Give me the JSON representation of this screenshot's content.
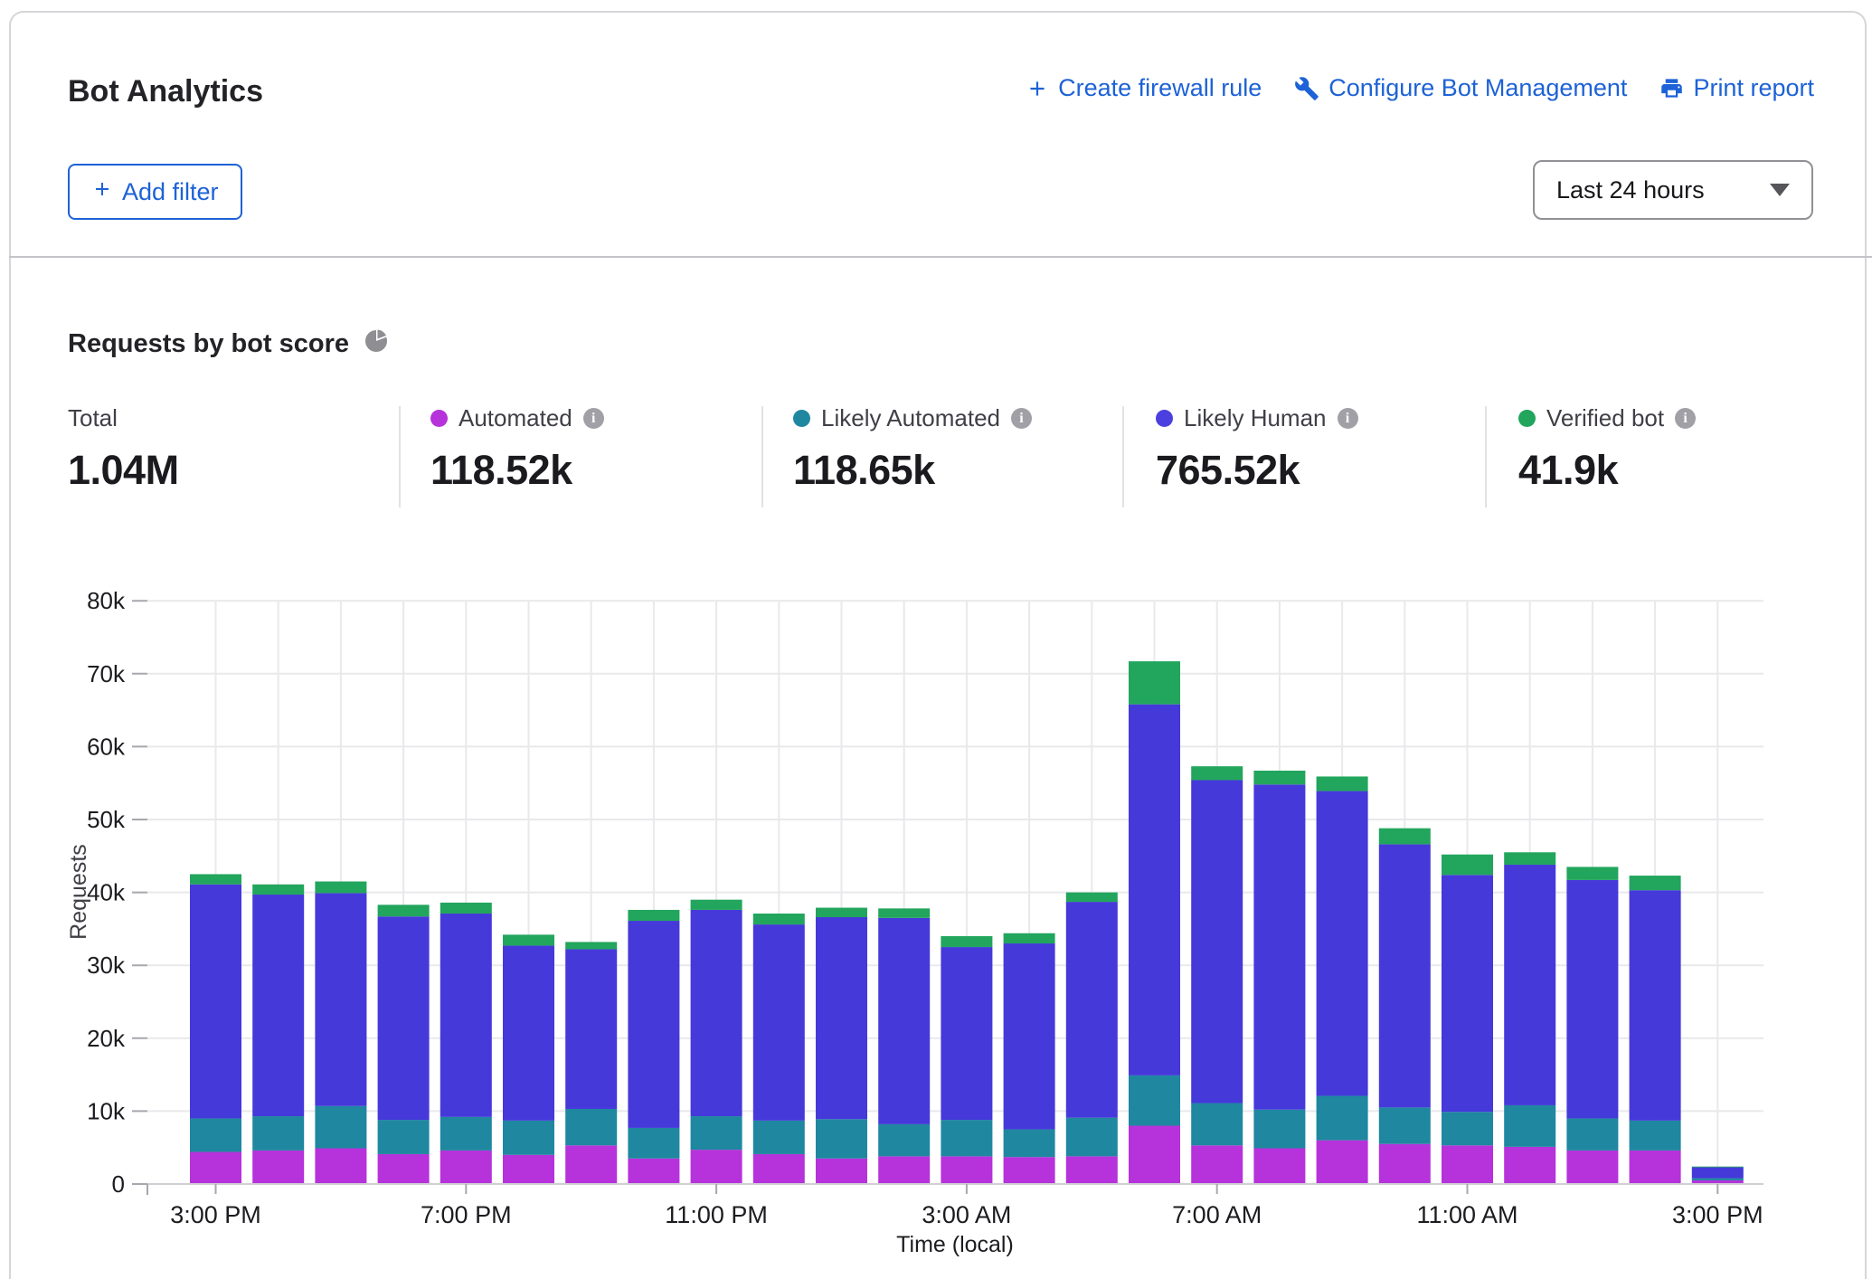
{
  "header": {
    "title": "Bot Analytics",
    "actions": [
      {
        "label": "Create firewall rule",
        "icon": "plus-icon"
      },
      {
        "label": "Configure Bot Management",
        "icon": "wrench-icon"
      },
      {
        "label": "Print report",
        "icon": "printer-icon"
      }
    ],
    "add_filter": {
      "label": "Add filter",
      "icon": "plus-icon"
    },
    "time_range_selector": {
      "value": "Last 24 hours"
    }
  },
  "section": {
    "title": "Requests by bot score",
    "icon": "pie-chart-icon"
  },
  "stats": {
    "total": {
      "label": "Total",
      "value": "1.04M"
    },
    "legend": [
      {
        "label": "Automated",
        "value": "118.52k",
        "color": "#b632db"
      },
      {
        "label": "Likely Automated",
        "value": "118.65k",
        "color": "#1f87a0"
      },
      {
        "label": "Likely Human",
        "value": "765.52k",
        "color": "#4c3fdf"
      },
      {
        "label": "Verified bot",
        "value": "41.9k",
        "color": "#22a55d"
      }
    ]
  },
  "chart_data": {
    "type": "bar",
    "stacked": true,
    "title": "Requests by bot score",
    "xlabel": "Time (local)",
    "ylabel": "Requests",
    "ylim": [
      0,
      80000
    ],
    "grid": true,
    "ytick_labels": [
      "0",
      "10k",
      "20k",
      "30k",
      "40k",
      "50k",
      "60k",
      "70k",
      "80k"
    ],
    "categories": [
      "3:00 PM",
      "4:00 PM",
      "5:00 PM",
      "6:00 PM",
      "7:00 PM",
      "8:00 PM",
      "9:00 PM",
      "10:00 PM",
      "11:00 PM",
      "12:00 AM",
      "1:00 AM",
      "2:00 AM",
      "3:00 AM",
      "4:00 AM",
      "5:00 AM",
      "6:00 AM",
      "7:00 AM",
      "8:00 AM",
      "9:00 AM",
      "10:00 AM",
      "11:00 AM",
      "12:00 PM",
      "1:00 PM",
      "2:00 PM",
      "3:00 PM"
    ],
    "xticks_shown_every": 4,
    "xtick_shown_labels": [
      "3:00 PM",
      "7:00 PM",
      "11:00 PM",
      "3:00 AM",
      "7:00 AM",
      "11:00 AM",
      "3:00 PM"
    ],
    "series": [
      {
        "name": "Automated",
        "color": "#b632db",
        "values": [
          4400,
          4600,
          4900,
          4100,
          4600,
          4000,
          5300,
          3500,
          4700,
          4100,
          3500,
          3800,
          3800,
          3700,
          3800,
          8000,
          5300,
          4900,
          6000,
          5500,
          5300,
          5100,
          4600,
          4600,
          500
        ]
      },
      {
        "name": "Likely Automated",
        "color": "#1f87a0",
        "values": [
          4600,
          4700,
          5800,
          4700,
          4600,
          4700,
          5000,
          4200,
          4600,
          4600,
          5400,
          4400,
          5000,
          3800,
          5300,
          6900,
          5800,
          5300,
          6100,
          5000,
          4600,
          5700,
          4400,
          4100,
          300
        ]
      },
      {
        "name": "Likely Human",
        "color": "#4539da",
        "values": [
          32100,
          30400,
          29200,
          27900,
          27900,
          24000,
          21900,
          28400,
          28300,
          26900,
          27700,
          28300,
          23700,
          25500,
          29600,
          50900,
          44300,
          44600,
          41800,
          36100,
          32500,
          33000,
          32700,
          31600,
          1500
        ]
      },
      {
        "name": "Verified bot",
        "color": "#22a55d",
        "values": [
          1400,
          1400,
          1600,
          1600,
          1500,
          1500,
          1000,
          1500,
          1400,
          1500,
          1300,
          1300,
          1500,
          1400,
          1300,
          5900,
          1900,
          1900,
          2000,
          2200,
          2800,
          1700,
          1800,
          2000,
          100
        ]
      }
    ]
  }
}
